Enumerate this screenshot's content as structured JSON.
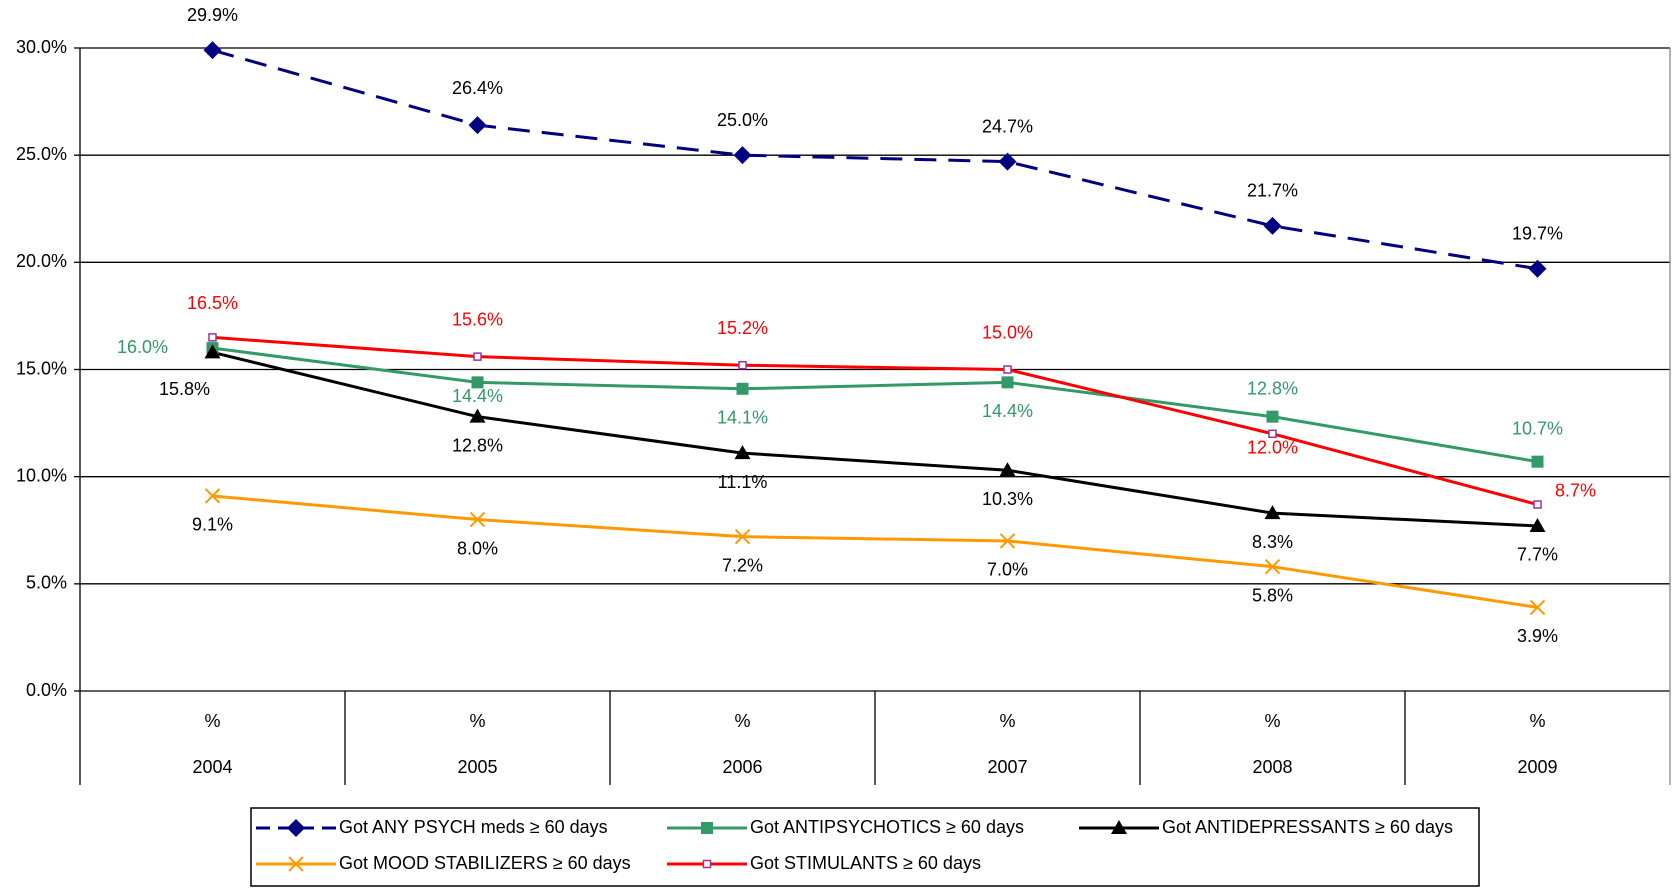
{
  "chart_data": {
    "type": "line",
    "categories": [
      "2004",
      "2005",
      "2006",
      "2007",
      "2008",
      "2009"
    ],
    "category_units": [
      "%",
      "%",
      "%",
      "%",
      "%",
      "%"
    ],
    "ylim": [
      0,
      30
    ],
    "yticks": [
      {
        "value": 0,
        "label": "0.0%"
      },
      {
        "value": 5,
        "label": "5.0%"
      },
      {
        "value": 10,
        "label": "10.0%"
      },
      {
        "value": 15,
        "label": "15.0%"
      },
      {
        "value": 20,
        "label": "20.0%"
      },
      {
        "value": 25,
        "label": "25.0%"
      },
      {
        "value": 30,
        "label": "30.0%"
      }
    ],
    "grid": true,
    "legend": "bottom",
    "series": [
      {
        "name": "Got ANY PSYCH meds ≥ 60 days",
        "color": "#000080",
        "dash": true,
        "marker": "diamond",
        "label_color": "#000000",
        "values": [
          29.9,
          26.4,
          25.0,
          24.7,
          21.7,
          19.7
        ],
        "value_labels": [
          "29.9%",
          "26.4%",
          "25.0%",
          "24.7%",
          "21.7%",
          "19.7%"
        ]
      },
      {
        "name": "Got ANTIPSYCHOTICS ≥ 60 days",
        "color": "#339966",
        "dash": false,
        "marker": "square",
        "label_color": "#339966",
        "values": [
          16.0,
          14.4,
          14.1,
          14.4,
          12.8,
          10.7
        ],
        "value_labels": [
          "16.0%",
          "14.4%",
          "14.1%",
          "14.4%",
          "12.8%",
          "10.7%"
        ]
      },
      {
        "name": "Got ANTIDEPRESSANTS ≥ 60 days",
        "color": "#000000",
        "dash": false,
        "marker": "triangle",
        "label_color": "#000000",
        "values": [
          15.8,
          12.8,
          11.1,
          10.3,
          8.3,
          7.7
        ],
        "value_labels": [
          "15.8%",
          "12.8%",
          "11.1%",
          "10.3%",
          "8.3%",
          "7.7%"
        ]
      },
      {
        "name": "Got MOOD STABILIZERS ≥ 60 days",
        "color": "#FF9900",
        "dash": false,
        "marker": "x",
        "label_color": "#000000",
        "values": [
          9.1,
          8.0,
          7.2,
          7.0,
          5.8,
          3.9
        ],
        "value_labels": [
          "9.1%",
          "8.0%",
          "7.2%",
          "7.0%",
          "5.8%",
          "3.9%"
        ]
      },
      {
        "name": "Got STIMULANTS ≥ 60 days",
        "color": "#FF0000",
        "dash": false,
        "marker": "smallsquare",
        "label_color": "#FF0000",
        "values": [
          16.5,
          15.6,
          15.2,
          15.0,
          12.0,
          8.7
        ],
        "value_labels": [
          "16.5%",
          "15.6%",
          "15.2%",
          "15.0%",
          "12.0%",
          "8.7%"
        ]
      }
    ]
  }
}
